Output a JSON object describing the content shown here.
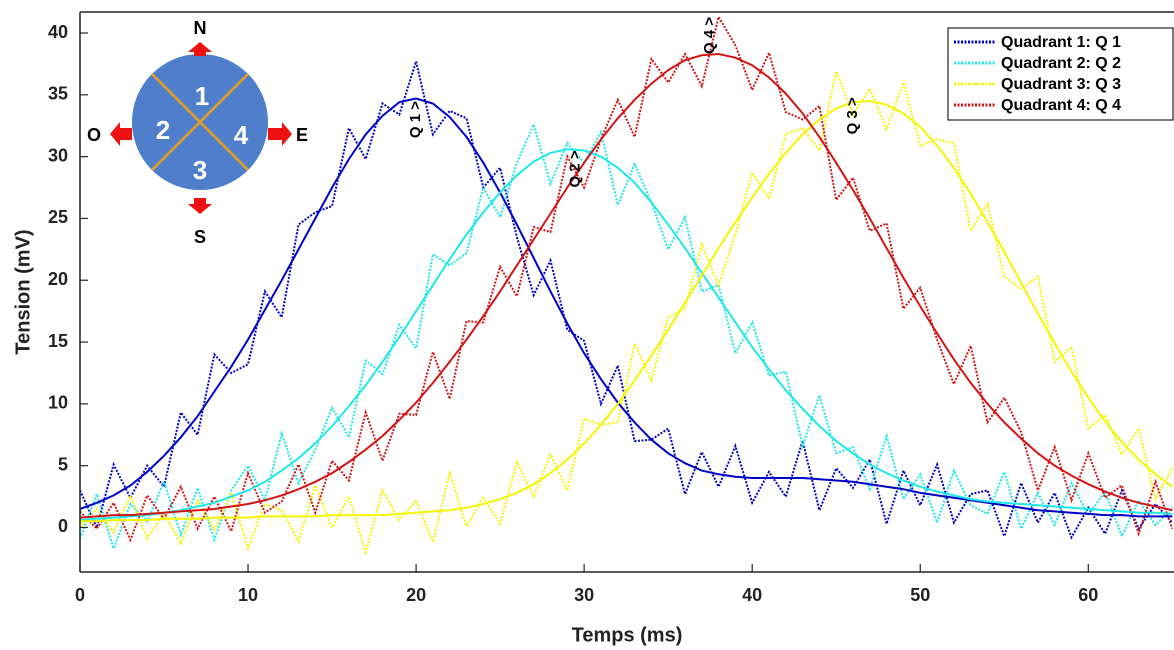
{
  "chart_data": {
    "type": "line",
    "xlabel": "Temps (ms)",
    "ylabel": "Tension (mV)",
    "x": [
      0,
      1,
      2,
      3,
      4,
      5,
      6,
      7,
      8,
      9,
      10,
      11,
      12,
      13,
      14,
      15,
      16,
      17,
      18,
      19,
      20,
      21,
      22,
      23,
      24,
      25,
      26,
      27,
      28,
      29,
      30,
      31,
      32,
      33,
      34,
      35,
      36,
      37,
      38,
      39,
      40,
      41,
      42,
      43,
      44,
      45,
      46,
      47,
      48,
      49,
      50,
      51,
      52,
      53,
      54,
      55,
      56,
      57,
      58,
      59,
      60,
      61,
      62,
      63,
      64,
      65
    ],
    "xlim": [
      0,
      65.1
    ],
    "xticks": [
      0,
      10,
      20,
      30,
      40,
      50,
      60
    ],
    "ylim": [
      -3.6,
      41.7
    ],
    "yticks": [
      0,
      5,
      10,
      15,
      20,
      25,
      30,
      35,
      40
    ],
    "grid": false,
    "legend": "upper right",
    "series": [
      {
        "name": "Quadrant 1: Q 1",
        "color": "#0000c8",
        "values": [
          3,
          0,
          5.1,
          2.4,
          5,
          3.3,
          9.3,
          7.5,
          14,
          12.5,
          13.2,
          19.1,
          17,
          24.5,
          25.5,
          26,
          32.3,
          29.8,
          34.3,
          33.4,
          37.7,
          31.8,
          33.7,
          33.1,
          27.5,
          29.1,
          23.5,
          18.8,
          21.6,
          16,
          15.1,
          10,
          13.1,
          7,
          7.1,
          8,
          2.7,
          6.1,
          3.3,
          6.6,
          2,
          4.5,
          2.5,
          7,
          1.4,
          4.8,
          3.2,
          5.5,
          0.3,
          4.6,
          1.8,
          5.1,
          0.4,
          2.7,
          3,
          -0.7,
          3.6,
          0.4,
          2.8,
          -0.8,
          1.6,
          -0.5,
          3,
          -0.1,
          1.9,
          0.4
        ],
        "fit": [
          1.5,
          2,
          2.6,
          3.4,
          4.5,
          5.8,
          7.3,
          9,
          11,
          13,
          15.2,
          17.6,
          20,
          22.5,
          25,
          27.5,
          29.8,
          31.8,
          33.3,
          34.4,
          34.7,
          34.3,
          33.2,
          31.6,
          29.5,
          27.1,
          24.5,
          21.8,
          19.1,
          16.5,
          14.1,
          12,
          10.1,
          8.5,
          7.1,
          6,
          5.2,
          4.6,
          4.3,
          4.1,
          4,
          4,
          4,
          4,
          3.9,
          3.8,
          3.7,
          3.5,
          3.3,
          3.1,
          2.8,
          2.6,
          2.4,
          2.2,
          2,
          1.8,
          1.6,
          1.4,
          1.3,
          1.2,
          1.1,
          1,
          1,
          0.9,
          0.9,
          0.9
        ]
      },
      {
        "name": "Quadrant 2: Q 2",
        "color": "#1ee8e8",
        "values": [
          -0.9,
          2.7,
          -1.7,
          1.9,
          0.5,
          3.7,
          -0.6,
          3.2,
          -1,
          3,
          5,
          2.2,
          7.6,
          3.6,
          6.3,
          9.7,
          7.3,
          13.5,
          12.4,
          16.4,
          14.5,
          22.1,
          21.2,
          22.2,
          27.5,
          25.1,
          29.5,
          32.6,
          27.8,
          31.1,
          29.5,
          32,
          26.1,
          29.4,
          26.3,
          22.5,
          25.1,
          19.1,
          19.6,
          14.1,
          16.6,
          12.3,
          12.6,
          6.6,
          10.7,
          6,
          6.5,
          3.1,
          7.4,
          2.3,
          4.3,
          0.4,
          4.6,
          1.8,
          1.1,
          4.5,
          -0.1,
          2.8,
          0.2,
          3.6,
          1,
          2.9,
          -0.7,
          2.2,
          0.2,
          1.6
        ],
        "fit": [
          0.6,
          0.7,
          0.8,
          0.9,
          1,
          1.2,
          1.4,
          1.7,
          2,
          2.5,
          3,
          3.7,
          4.6,
          5.6,
          6.8,
          8.2,
          9.8,
          11.5,
          13.4,
          15.4,
          17.5,
          19.6,
          21.7,
          23.7,
          25.5,
          27.1,
          28.5,
          29.6,
          30.3,
          30.6,
          30.5,
          30,
          29.1,
          27.9,
          26.3,
          24.5,
          22.6,
          20.6,
          18.6,
          16.6,
          14.6,
          12.8,
          11.1,
          9.6,
          8.2,
          7,
          6,
          5.1,
          4.4,
          3.8,
          3.3,
          2.9,
          2.6,
          2.3,
          2.1,
          2,
          1.9,
          1.8,
          1.7,
          1.6,
          1.5,
          1.4,
          1.3,
          1.2,
          1.2,
          1.1
        ]
      },
      {
        "name": "Quadrant 3: Q 3",
        "color": "#f5f500",
        "values": [
          0,
          1.5,
          -0.4,
          2.6,
          -0.9,
          1.2,
          -1.3,
          2.2,
          -0.2,
          2.8,
          -1.7,
          1.9,
          1.4,
          -1.1,
          3.4,
          0,
          2.5,
          -2,
          3,
          0.6,
          2.2,
          -1.2,
          4.4,
          0.1,
          2.4,
          0.3,
          5.3,
          2.5,
          5.9,
          3,
          8.8,
          8.3,
          8.5,
          14.9,
          11.9,
          17,
          17.7,
          22.9,
          19.6,
          23.7,
          28.7,
          26.6,
          31.8,
          32.3,
          30.5,
          36.9,
          33.4,
          35.5,
          32.2,
          36,
          30.9,
          31.4,
          31.1,
          24,
          26.2,
          20.3,
          19.3,
          20.3,
          13.4,
          14.6,
          8,
          9.1,
          5.9,
          8,
          2.3,
          4.8
        ],
        "fit": [
          0.5,
          0.5,
          0.6,
          0.6,
          0.6,
          0.7,
          0.7,
          0.7,
          0.8,
          0.8,
          0.8,
          0.9,
          0.9,
          0.9,
          0.9,
          1,
          1,
          1,
          1,
          1.1,
          1.2,
          1.3,
          1.4,
          1.6,
          1.9,
          2.3,
          2.8,
          3.5,
          4.4,
          5.5,
          6.8,
          8.3,
          10,
          11.9,
          13.9,
          16,
          18.2,
          20.4,
          22.6,
          24.7,
          26.7,
          28.6,
          30.3,
          31.8,
          33,
          33.9,
          34.4,
          34.5,
          34.2,
          33.5,
          32.4,
          30.9,
          29.1,
          27,
          24.7,
          22.3,
          19.8,
          17.3,
          14.9,
          12.6,
          10.5,
          8.6,
          6.9,
          5.5,
          4.3,
          3.3
        ]
      },
      {
        "name": "Quadrant 4: Q 4",
        "color": "#d21414",
        "values": [
          1.3,
          -0.1,
          2,
          -1,
          2.6,
          0.7,
          3.3,
          -0.1,
          2.5,
          -0.3,
          4.4,
          1.2,
          2.1,
          5.1,
          1.2,
          5.4,
          3.8,
          9.3,
          5.4,
          9.2,
          9.1,
          14.2,
          10.4,
          16.7,
          16.6,
          21.1,
          18.7,
          24.3,
          23.9,
          30,
          27.5,
          31.4,
          34.6,
          31.6,
          37.9,
          36,
          38.3,
          35.7,
          41.3,
          39,
          35.4,
          38.4,
          33.6,
          33,
          34.1,
          26.5,
          28.3,
          24,
          24.6,
          17.7,
          19.4,
          15.2,
          11.6,
          14.7,
          8.5,
          10.5,
          7.7,
          3,
          6.5,
          2.2,
          6,
          2.4,
          3.4,
          -0.5,
          3.7,
          -0.1
        ],
        "fit": [
          0.8,
          0.9,
          1,
          1,
          1.1,
          1.2,
          1.3,
          1.4,
          1.5,
          1.7,
          1.9,
          2.2,
          2.6,
          3.1,
          3.7,
          4.4,
          5.3,
          6.3,
          7.4,
          8.7,
          10.1,
          11.7,
          13.4,
          15.2,
          17.1,
          19.1,
          21.2,
          23.3,
          25.4,
          27.5,
          29.5,
          31.4,
          33.1,
          34.6,
          35.9,
          37,
          37.8,
          38.2,
          38.3,
          38,
          37.4,
          36.4,
          35.1,
          33.5,
          31.6,
          29.5,
          27.3,
          25,
          22.6,
          20.2,
          17.9,
          15.7,
          13.6,
          11.7,
          10,
          8.5,
          7.2,
          6,
          5,
          4.2,
          3.5,
          2.9,
          2.4,
          2,
          1.7,
          1.4
        ]
      }
    ],
    "annotations": [
      {
        "text": "Q 1 >",
        "x": 20,
        "y": 31.5
      },
      {
        "text": "Q 2 >",
        "x": 29.5,
        "y": 27.5
      },
      {
        "text": "Q 4 >",
        "x": 37.5,
        "y": 38.3
      },
      {
        "text": "Q 3 >",
        "x": 46,
        "y": 31.8
      }
    ]
  },
  "inset": {
    "north": "N",
    "south": "S",
    "west": "O",
    "east": "E",
    "quadrants": [
      "1",
      "2",
      "3",
      "4"
    ]
  }
}
